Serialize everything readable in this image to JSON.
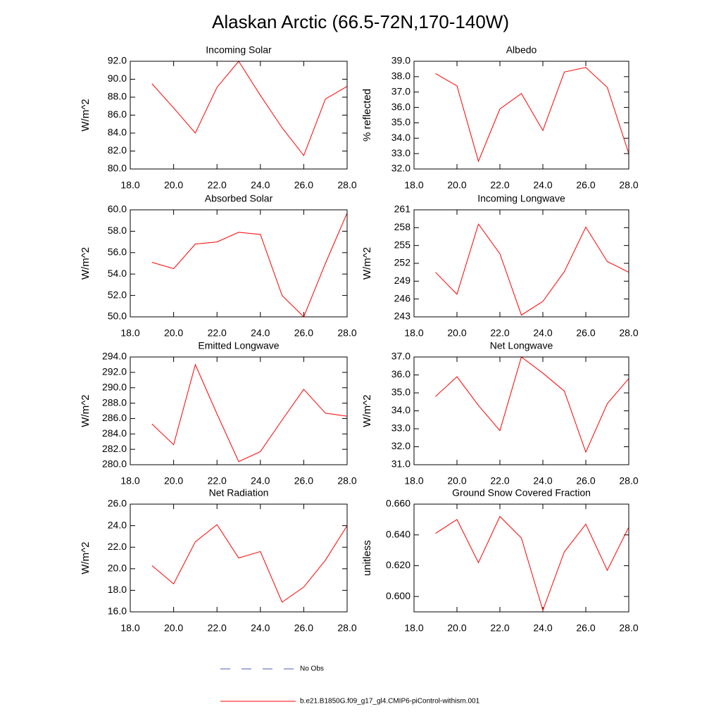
{
  "title": "Alaskan Arctic (66.5-72N,170-140W)",
  "legend": [
    {
      "name": "No Obs",
      "color": "#4a5bb0",
      "style": "dashed"
    },
    {
      "name": "b.e21.B1850G.f09_g17_gl4.CMIP6-piControl-withism.001",
      "color": "#ff0000",
      "style": "solid"
    }
  ],
  "chart_data": [
    {
      "type": "line",
      "title": "Incoming Solar",
      "y_label": "W/m^2",
      "x": [
        19,
        20,
        21,
        22,
        23,
        24,
        25,
        26,
        27,
        28
      ],
      "series": [
        {
          "color": "#ff0000",
          "values": [
            89.5,
            86.8,
            84.0,
            89.1,
            92.0,
            88.2,
            84.6,
            81.5,
            87.8,
            89.2
          ]
        }
      ],
      "xlim": [
        18,
        28
      ],
      "xticks": [
        {
          "value": 18,
          "label": "18.0"
        },
        {
          "value": 20,
          "label": "20.0"
        },
        {
          "value": 22,
          "label": "22.0"
        },
        {
          "value": 24,
          "label": "24.0"
        },
        {
          "value": 26,
          "label": "26.0"
        },
        {
          "value": 28,
          "label": "28.0"
        }
      ],
      "ylim": [
        80,
        92
      ],
      "yticks": [
        {
          "value": 80,
          "label": "80.0"
        },
        {
          "value": 82,
          "label": "82.0"
        },
        {
          "value": 84,
          "label": "84.0"
        },
        {
          "value": 86,
          "label": "86.0"
        },
        {
          "value": 88,
          "label": "88.0"
        },
        {
          "value": 90,
          "label": "90.0"
        },
        {
          "value": 92,
          "label": "92.0"
        }
      ]
    },
    {
      "type": "line",
      "title": "Albedo",
      "y_label": "% reflected",
      "x": [
        19,
        20,
        21,
        22,
        23,
        24,
        25,
        26,
        27,
        28
      ],
      "series": [
        {
          "color": "#ff0000",
          "values": [
            38.2,
            37.4,
            32.5,
            35.9,
            36.9,
            34.5,
            38.3,
            38.6,
            37.3,
            33.0
          ]
        }
      ],
      "xlim": [
        18,
        28
      ],
      "xticks": [
        {
          "value": 18,
          "label": "18.0"
        },
        {
          "value": 20,
          "label": "20.0"
        },
        {
          "value": 22,
          "label": "22.0"
        },
        {
          "value": 24,
          "label": "24.0"
        },
        {
          "value": 26,
          "label": "26.0"
        },
        {
          "value": 28,
          "label": "28.0"
        }
      ],
      "ylim": [
        32,
        39
      ],
      "yticks": [
        {
          "value": 32,
          "label": "32.0"
        },
        {
          "value": 33,
          "label": "33.0"
        },
        {
          "value": 34,
          "label": "34.0"
        },
        {
          "value": 35,
          "label": "35.0"
        },
        {
          "value": 36,
          "label": "36.0"
        },
        {
          "value": 37,
          "label": "37.0"
        },
        {
          "value": 38,
          "label": "38.0"
        },
        {
          "value": 39,
          "label": "39.0"
        }
      ]
    },
    {
      "type": "line",
      "title": "Absorbed Solar",
      "y_label": "W/m^2",
      "x": [
        19,
        20,
        21,
        22,
        23,
        24,
        25,
        26,
        27,
        28
      ],
      "series": [
        {
          "color": "#ff0000",
          "values": [
            55.1,
            54.5,
            56.8,
            57.0,
            57.9,
            57.7,
            52.0,
            50.0,
            55.0,
            59.7
          ]
        }
      ],
      "xlim": [
        18,
        28
      ],
      "xticks": [
        {
          "value": 18,
          "label": "18.0"
        },
        {
          "value": 20,
          "label": "20.0"
        },
        {
          "value": 22,
          "label": "22.0"
        },
        {
          "value": 24,
          "label": "24.0"
        },
        {
          "value": 26,
          "label": "26.0"
        },
        {
          "value": 28,
          "label": "28.0"
        }
      ],
      "ylim": [
        50,
        60
      ],
      "yticks": [
        {
          "value": 50,
          "label": "50.0"
        },
        {
          "value": 52,
          "label": "52.0"
        },
        {
          "value": 54,
          "label": "54.0"
        },
        {
          "value": 56,
          "label": "56.0"
        },
        {
          "value": 58,
          "label": "58.0"
        },
        {
          "value": 60,
          "label": "60.0"
        }
      ]
    },
    {
      "type": "line",
      "title": "Incoming Longwave",
      "y_label": "W/m^2",
      "x": [
        19,
        20,
        21,
        22,
        23,
        24,
        25,
        26,
        27,
        28
      ],
      "series": [
        {
          "color": "#ff0000",
          "values": [
            250.5,
            246.8,
            258.6,
            253.6,
            243.3,
            245.6,
            250.6,
            258.1,
            252.3,
            250.5
          ]
        }
      ],
      "xlim": [
        18,
        28
      ],
      "xticks": [
        {
          "value": 18,
          "label": "18.0"
        },
        {
          "value": 20,
          "label": "20.0"
        },
        {
          "value": 22,
          "label": "22.0"
        },
        {
          "value": 24,
          "label": "24.0"
        },
        {
          "value": 26,
          "label": "26.0"
        },
        {
          "value": 28,
          "label": "28.0"
        }
      ],
      "ylim": [
        243,
        261
      ],
      "yticks": [
        243,
        246,
        249,
        252,
        255,
        258,
        261
      ]
    },
    {
      "type": "line",
      "title": "Emitted Longwave",
      "y_label": "W/m^2",
      "x": [
        19,
        20,
        21,
        22,
        23,
        24,
        25,
        26,
        27,
        28
      ],
      "series": [
        {
          "color": "#ff0000",
          "values": [
            285.3,
            282.6,
            293.0,
            286.6,
            280.4,
            281.7,
            285.8,
            289.8,
            286.7,
            286.3
          ]
        }
      ],
      "xlim": [
        18,
        28
      ],
      "xticks": [
        {
          "value": 18,
          "label": "18.0"
        },
        {
          "value": 20,
          "label": "20.0"
        },
        {
          "value": 22,
          "label": "22.0"
        },
        {
          "value": 24,
          "label": "24.0"
        },
        {
          "value": 26,
          "label": "26.0"
        },
        {
          "value": 28,
          "label": "28.0"
        }
      ],
      "ylim": [
        280,
        294
      ],
      "yticks": [
        {
          "value": 280,
          "label": "280.0"
        },
        {
          "value": 282,
          "label": "282.0"
        },
        {
          "value": 284,
          "label": "284.0"
        },
        {
          "value": 286,
          "label": "286.0"
        },
        {
          "value": 288,
          "label": "288.0"
        },
        {
          "value": 290,
          "label": "290.0"
        },
        {
          "value": 292,
          "label": "292.0"
        },
        {
          "value": 294,
          "label": "294.0"
        }
      ]
    },
    {
      "type": "line",
      "title": "Net Longwave",
      "y_label": "W/m^2",
      "x": [
        19,
        20,
        21,
        22,
        23,
        24,
        25,
        26,
        27,
        28
      ],
      "series": [
        {
          "color": "#ff0000",
          "values": [
            34.8,
            35.9,
            34.3,
            32.9,
            37.0,
            36.1,
            35.1,
            31.7,
            34.4,
            35.8
          ]
        }
      ],
      "xlim": [
        18,
        28
      ],
      "xticks": [
        {
          "value": 18,
          "label": "18.0"
        },
        {
          "value": 20,
          "label": "20.0"
        },
        {
          "value": 22,
          "label": "22.0"
        },
        {
          "value": 24,
          "label": "24.0"
        },
        {
          "value": 26,
          "label": "26.0"
        },
        {
          "value": 28,
          "label": "28.0"
        }
      ],
      "ylim": [
        31,
        37
      ],
      "yticks": [
        {
          "value": 31,
          "label": "31.0"
        },
        {
          "value": 32,
          "label": "32.0"
        },
        {
          "value": 33,
          "label": "33.0"
        },
        {
          "value": 34,
          "label": "34.0"
        },
        {
          "value": 35,
          "label": "35.0"
        },
        {
          "value": 36,
          "label": "36.0"
        },
        {
          "value": 37,
          "label": "37.0"
        }
      ]
    },
    {
      "type": "line",
      "title": "Net Radiation",
      "y_label": "W/m^2",
      "x": [
        19,
        20,
        21,
        22,
        23,
        24,
        25,
        26,
        27,
        28
      ],
      "series": [
        {
          "color": "#ff0000",
          "values": [
            20.3,
            18.6,
            22.5,
            24.1,
            21.0,
            21.6,
            16.9,
            18.3,
            20.8,
            24.0
          ]
        }
      ],
      "xlim": [
        18,
        28
      ],
      "xticks": [
        {
          "value": 18,
          "label": "18.0"
        },
        {
          "value": 20,
          "label": "20.0"
        },
        {
          "value": 22,
          "label": "22.0"
        },
        {
          "value": 24,
          "label": "24.0"
        },
        {
          "value": 26,
          "label": "26.0"
        },
        {
          "value": 28,
          "label": "28.0"
        }
      ],
      "ylim": [
        16,
        26
      ],
      "yticks": [
        {
          "value": 16,
          "label": "16.0"
        },
        {
          "value": 18,
          "label": "18.0"
        },
        {
          "value": 20,
          "label": "20.0"
        },
        {
          "value": 22,
          "label": "22.0"
        },
        {
          "value": 24,
          "label": "24.0"
        },
        {
          "value": 26,
          "label": "26.0"
        }
      ]
    },
    {
      "type": "line",
      "title": "Ground Snow Covered Fraction",
      "y_label": "unitless",
      "x": [
        19,
        20,
        21,
        22,
        23,
        24,
        25,
        26,
        27,
        28
      ],
      "series": [
        {
          "color": "#ff0000",
          "values": [
            0.641,
            0.65,
            0.622,
            0.652,
            0.638,
            0.591,
            0.629,
            0.647,
            0.617,
            0.645
          ]
        }
      ],
      "xlim": [
        18,
        28
      ],
      "xticks": [
        {
          "value": 18,
          "label": "18.0"
        },
        {
          "value": 20,
          "label": "20.0"
        },
        {
          "value": 22,
          "label": "22.0"
        },
        {
          "value": 24,
          "label": "24.0"
        },
        {
          "value": 26,
          "label": "26.0"
        },
        {
          "value": 28,
          "label": "28.0"
        }
      ],
      "ylim": [
        0.59,
        0.66
      ],
      "yticks": [
        {
          "value": 0.6,
          "label": "0.600"
        },
        {
          "value": 0.62,
          "label": "0.620"
        },
        {
          "value": 0.64,
          "label": "0.640"
        },
        {
          "value": 0.66,
          "label": "0.660"
        }
      ]
    }
  ]
}
